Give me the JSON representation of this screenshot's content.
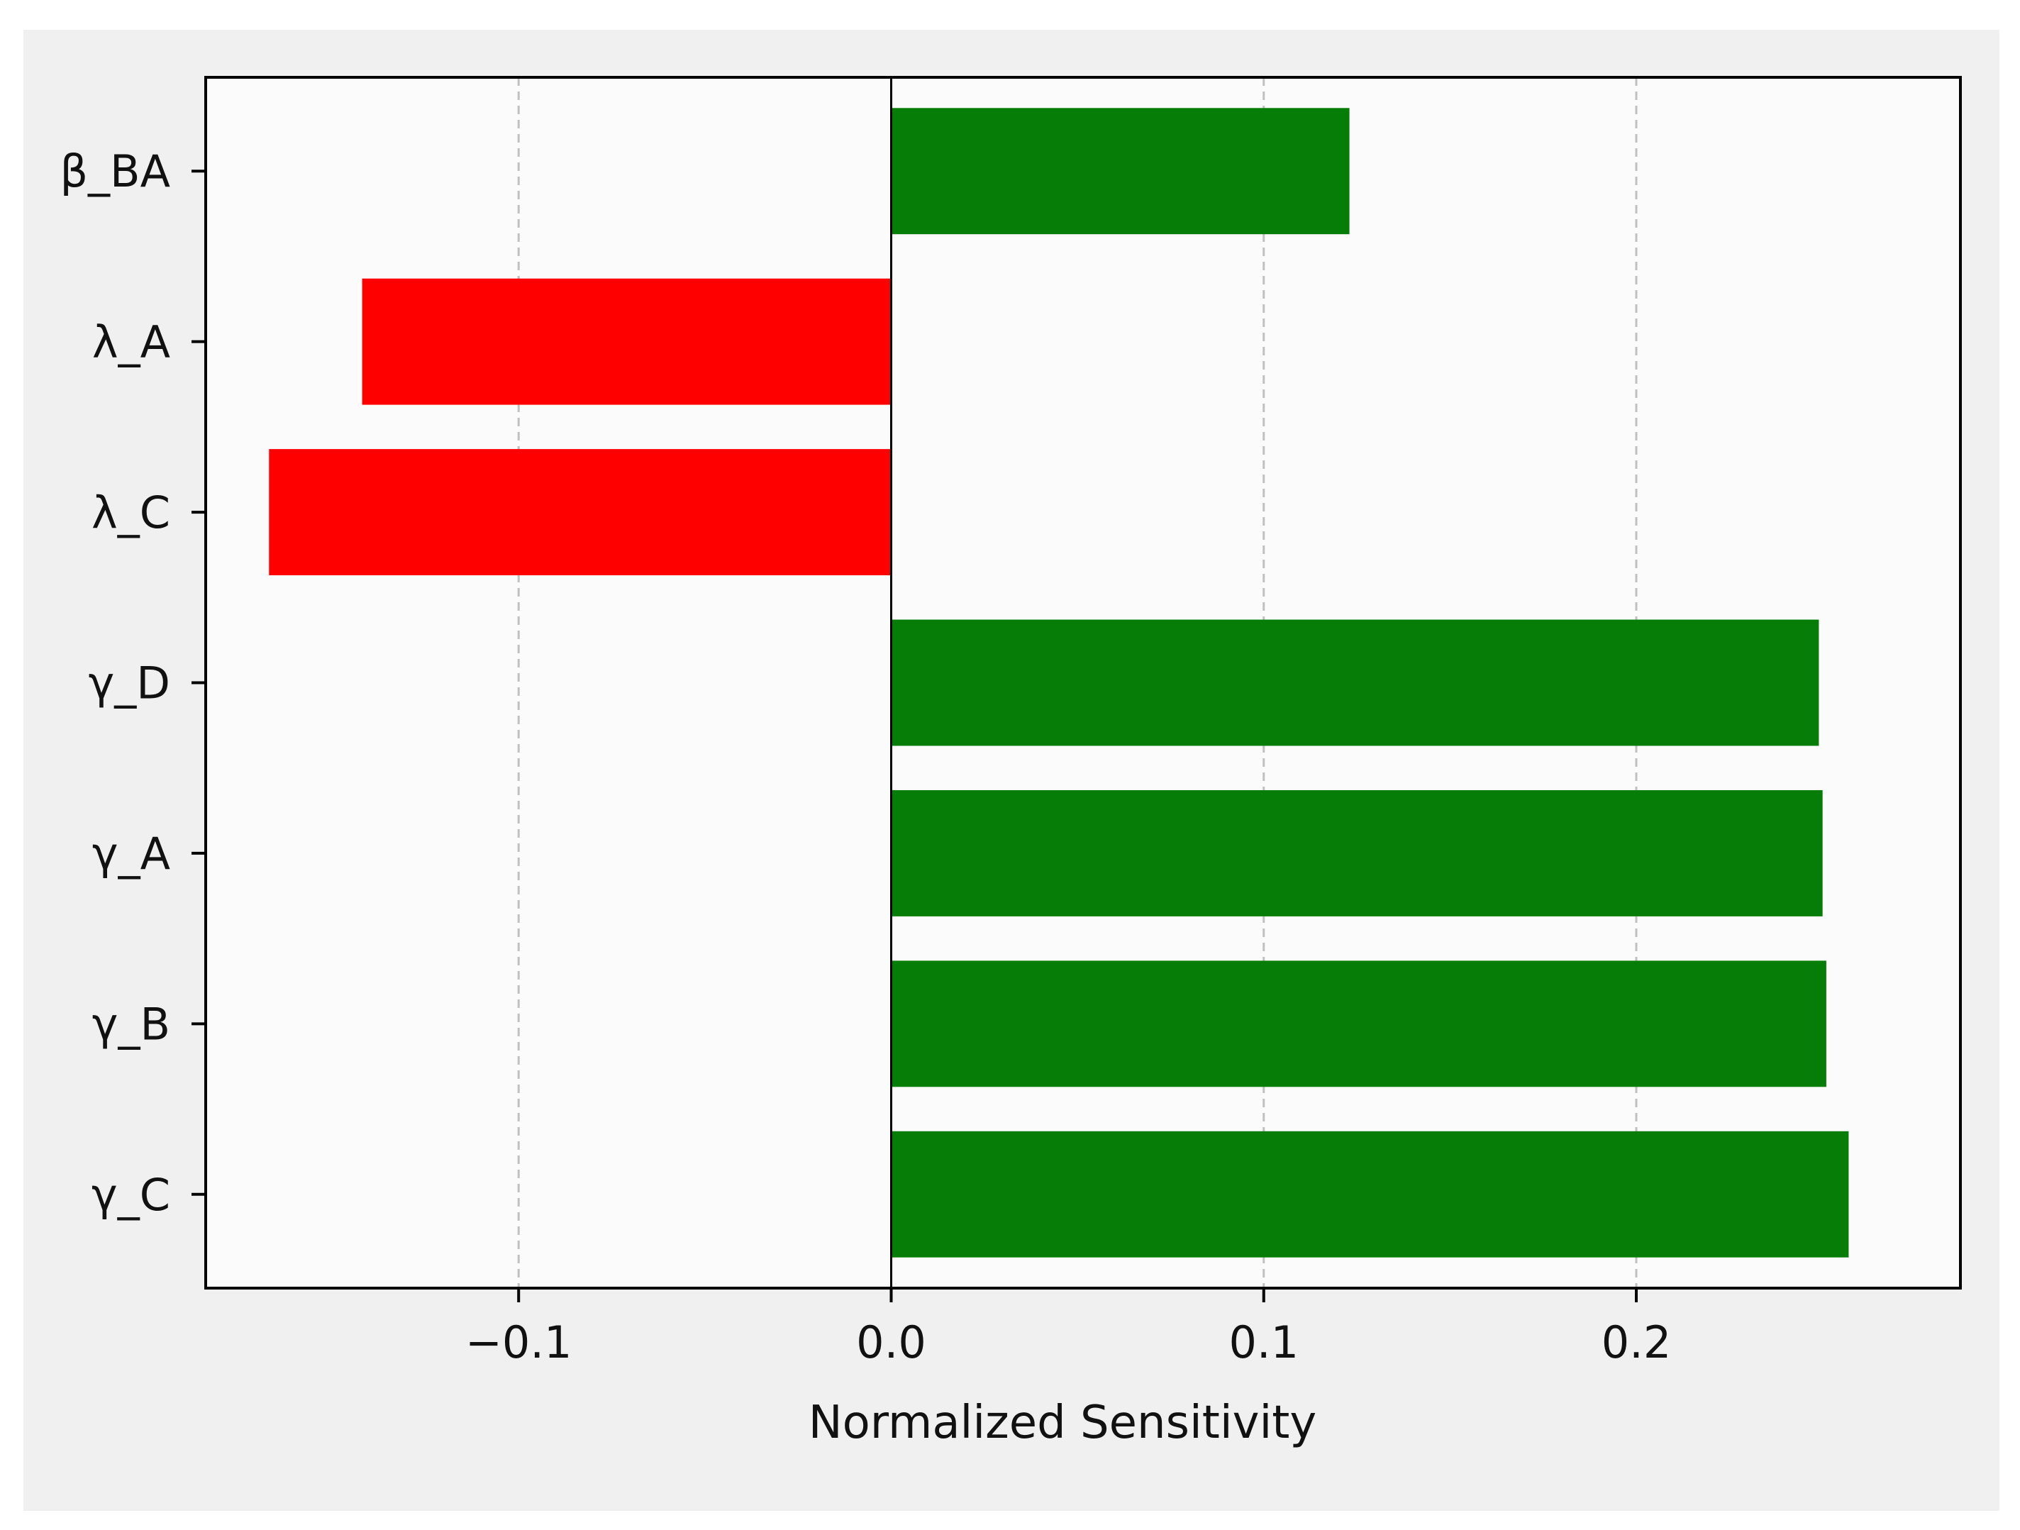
{
  "chart_data": {
    "type": "bar",
    "orientation": "horizontal",
    "title": "",
    "xlabel": "Normalized Sensitivity",
    "ylabel": "",
    "categories": [
      "β_BA",
      "λ_A",
      "λ_C",
      "γ_D",
      "γ_A",
      "γ_B",
      "γ_C"
    ],
    "values": [
      0.123,
      -0.142,
      -0.167,
      0.249,
      0.25,
      0.251,
      0.257
    ],
    "xlim": [
      -0.184,
      0.287
    ],
    "xticks": [
      -0.1,
      0.0,
      0.1,
      0.2
    ],
    "xtick_labels": [
      "−0.1",
      "0.0",
      "0.1",
      "0.2"
    ],
    "grid": "x-dashed",
    "colors": {
      "positive": "#067d06",
      "negative": "#fe0000",
      "background": "#fbfbfb",
      "figure": "#f0f0f0",
      "grid": "#c0c0c0"
    }
  }
}
